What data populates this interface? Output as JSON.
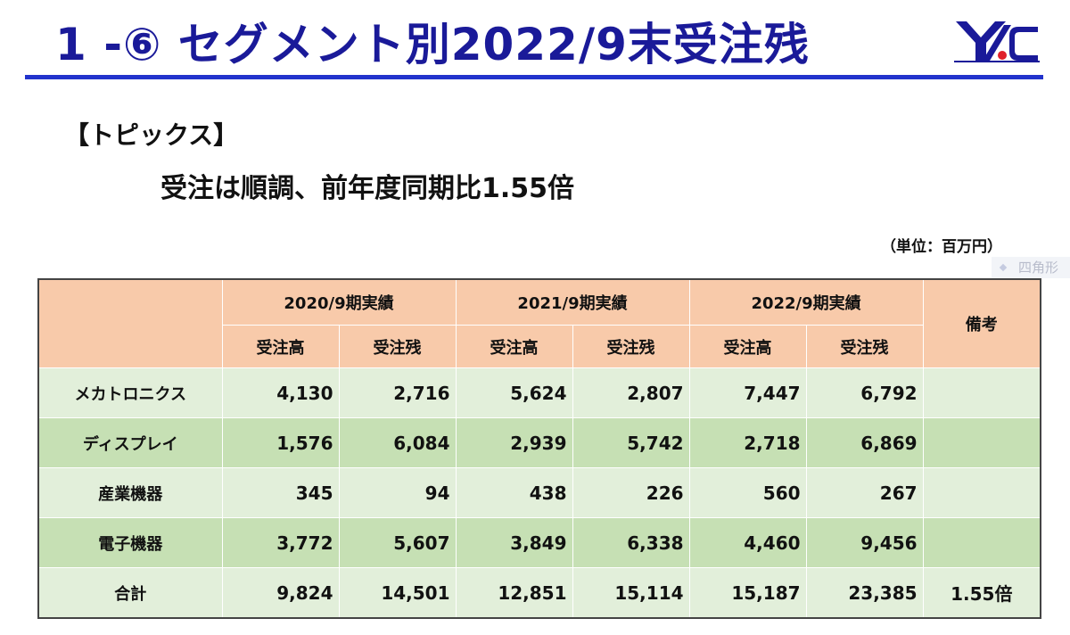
{
  "slide": {
    "title": "1 -⑥  セグメント別2022/9末受注残",
    "logo_text": "YAC"
  },
  "topics": {
    "heading": "【トピックス】",
    "body": "受注は順調、前年度同期比1.55倍"
  },
  "unit_label": "（単位：百万円）",
  "ghost_label": "四角形",
  "table": {
    "periods": [
      "2020/9期実績",
      "2021/9期実績",
      "2022/9期実績"
    ],
    "remarks_header": "備考",
    "subheaders": [
      "受注高",
      "受注残",
      "受注高",
      "受注残",
      "受注高",
      "受注残"
    ],
    "rows": [
      {
        "name": "メカトロニクス",
        "values": [
          "4,130",
          "2,716",
          "5,624",
          "2,807",
          "7,447",
          "6,792"
        ],
        "note": ""
      },
      {
        "name": "ディスプレイ",
        "values": [
          "1,576",
          "6,084",
          "2,939",
          "5,742",
          "2,718",
          "6,869"
        ],
        "note": ""
      },
      {
        "name": "産業機器",
        "values": [
          "345",
          "94",
          "438",
          "226",
          "560",
          "267"
        ],
        "note": ""
      },
      {
        "name": "電子機器",
        "values": [
          "3,772",
          "5,607",
          "3,849",
          "6,338",
          "4,460",
          "9,456"
        ],
        "note": ""
      },
      {
        "name": "合計",
        "values": [
          "9,824",
          "14,501",
          "12,851",
          "15,114",
          "15,187",
          "23,385"
        ],
        "note": "1.55倍"
      }
    ]
  },
  "colors": {
    "title": "#1a1a99",
    "title_rule": "#2233cc",
    "header_bg": "#f8caaa",
    "row_light": "#e2efda",
    "row_dark": "#c6e0b4",
    "logo_red": "#e0202a"
  }
}
